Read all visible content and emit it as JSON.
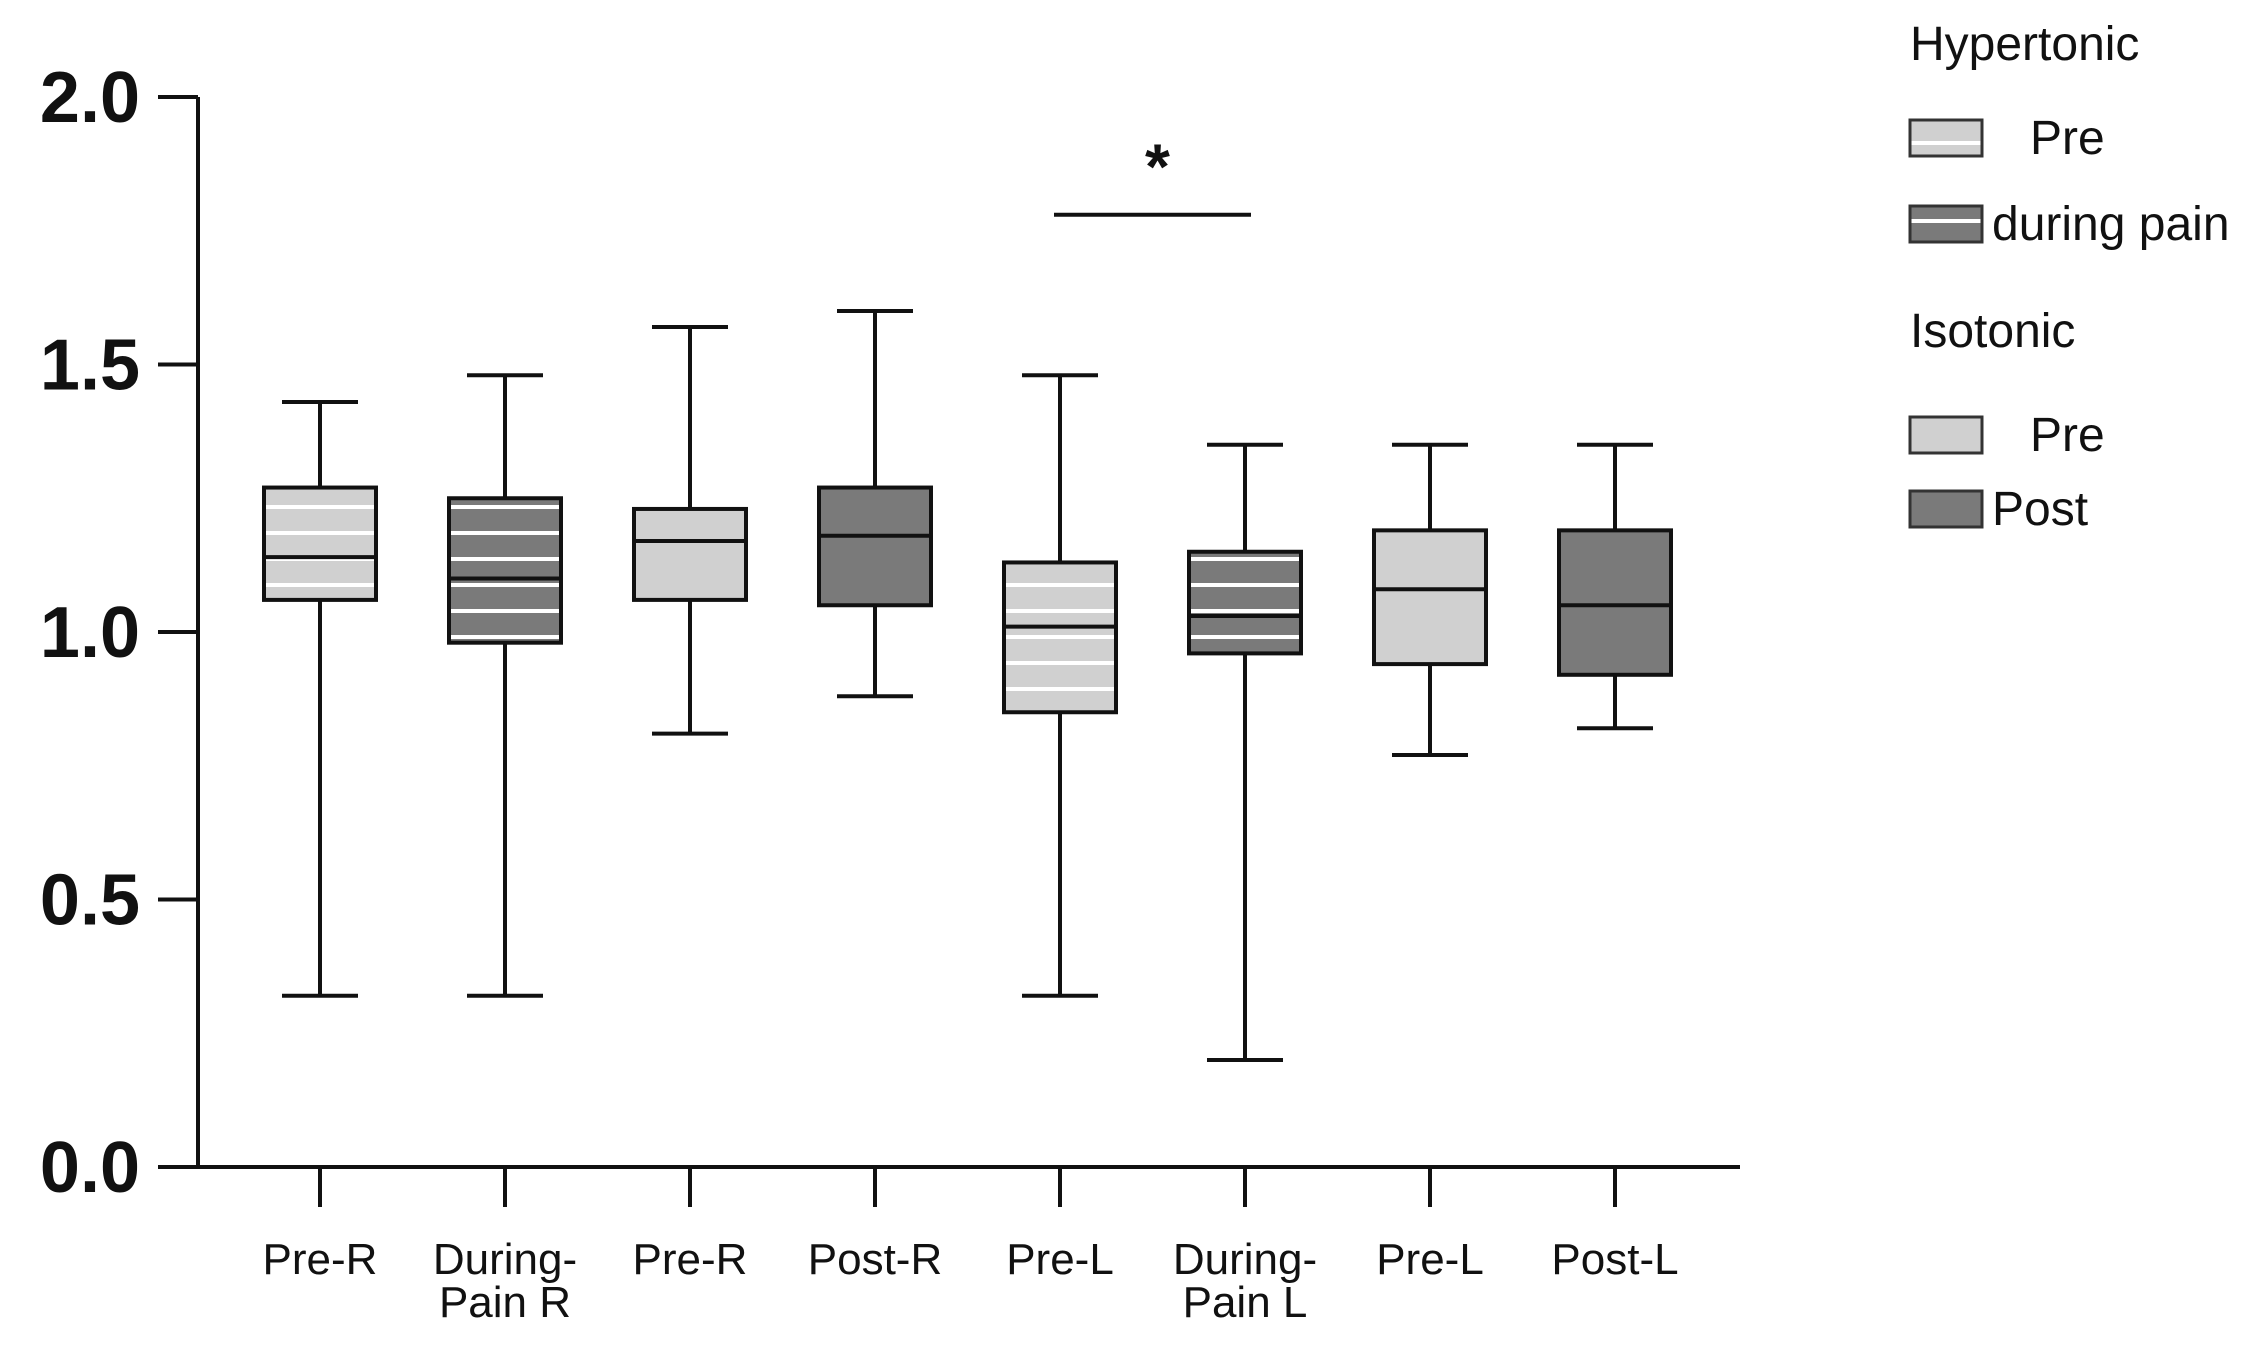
{
  "chart_data": {
    "type": "box",
    "ylim": [
      0.0,
      2.0
    ],
    "yticks": [
      "0.0",
      "0.5",
      "1.0",
      "1.5",
      "2.0"
    ],
    "categories": [
      [
        "Pre-R"
      ],
      [
        "During-",
        "Pain R"
      ],
      [
        "Pre-R"
      ],
      [
        "Post-R"
      ],
      [
        "Pre-L"
      ],
      [
        "During-",
        "Pain L"
      ],
      [
        "Pre-L"
      ],
      [
        "Post-L"
      ]
    ],
    "boxes": [
      {
        "group": "Hypertonic",
        "condition": "Pre",
        "min": 0.32,
        "q1": 1.06,
        "median": 1.14,
        "q3": 1.27,
        "max": 1.43
      },
      {
        "group": "Hypertonic",
        "condition": "during pain",
        "min": 0.32,
        "q1": 0.98,
        "median": 1.1,
        "q3": 1.25,
        "max": 1.48
      },
      {
        "group": "Isotonic",
        "condition": "Pre",
        "min": 0.81,
        "q1": 1.06,
        "median": 1.17,
        "q3": 1.23,
        "max": 1.57
      },
      {
        "group": "Isotonic",
        "condition": "Post",
        "min": 0.88,
        "q1": 1.05,
        "median": 1.18,
        "q3": 1.27,
        "max": 1.6
      },
      {
        "group": "Hypertonic",
        "condition": "Pre",
        "min": 0.32,
        "q1": 0.85,
        "median": 1.01,
        "q3": 1.13,
        "max": 1.48
      },
      {
        "group": "Hypertonic",
        "condition": "during pain",
        "min": 0.2,
        "q1": 0.96,
        "median": 1.03,
        "q3": 1.15,
        "max": 1.35
      },
      {
        "group": "Isotonic",
        "condition": "Pre",
        "min": 0.77,
        "q1": 0.94,
        "median": 1.08,
        "q3": 1.19,
        "max": 1.35
      },
      {
        "group": "Isotonic",
        "condition": "Post",
        "min": 0.82,
        "q1": 0.92,
        "median": 1.05,
        "q3": 1.19,
        "max": 1.35
      }
    ],
    "significance": {
      "from": 4,
      "to": 5,
      "y": 1.78,
      "label": "*"
    },
    "legend": {
      "placement": "top-right",
      "groups": [
        {
          "title": "Hypertonic",
          "items": [
            {
              "label": "Pre",
              "fill": "#d0d0d0",
              "striped": true
            },
            {
              "label": "during pain",
              "fill": "#7a7a7a",
              "striped": true
            }
          ]
        },
        {
          "title": "Isotonic",
          "items": [
            {
              "label": "Pre",
              "fill": "#d0d0d0",
              "striped": false
            },
            {
              "label": "Post",
              "fill": "#7a7a7a",
              "striped": false
            }
          ]
        }
      ]
    },
    "colors": {
      "light": "#d0d0d0",
      "dark": "#7a7a7a",
      "stroke": "#111111",
      "stripe": "#ffffff"
    }
  }
}
